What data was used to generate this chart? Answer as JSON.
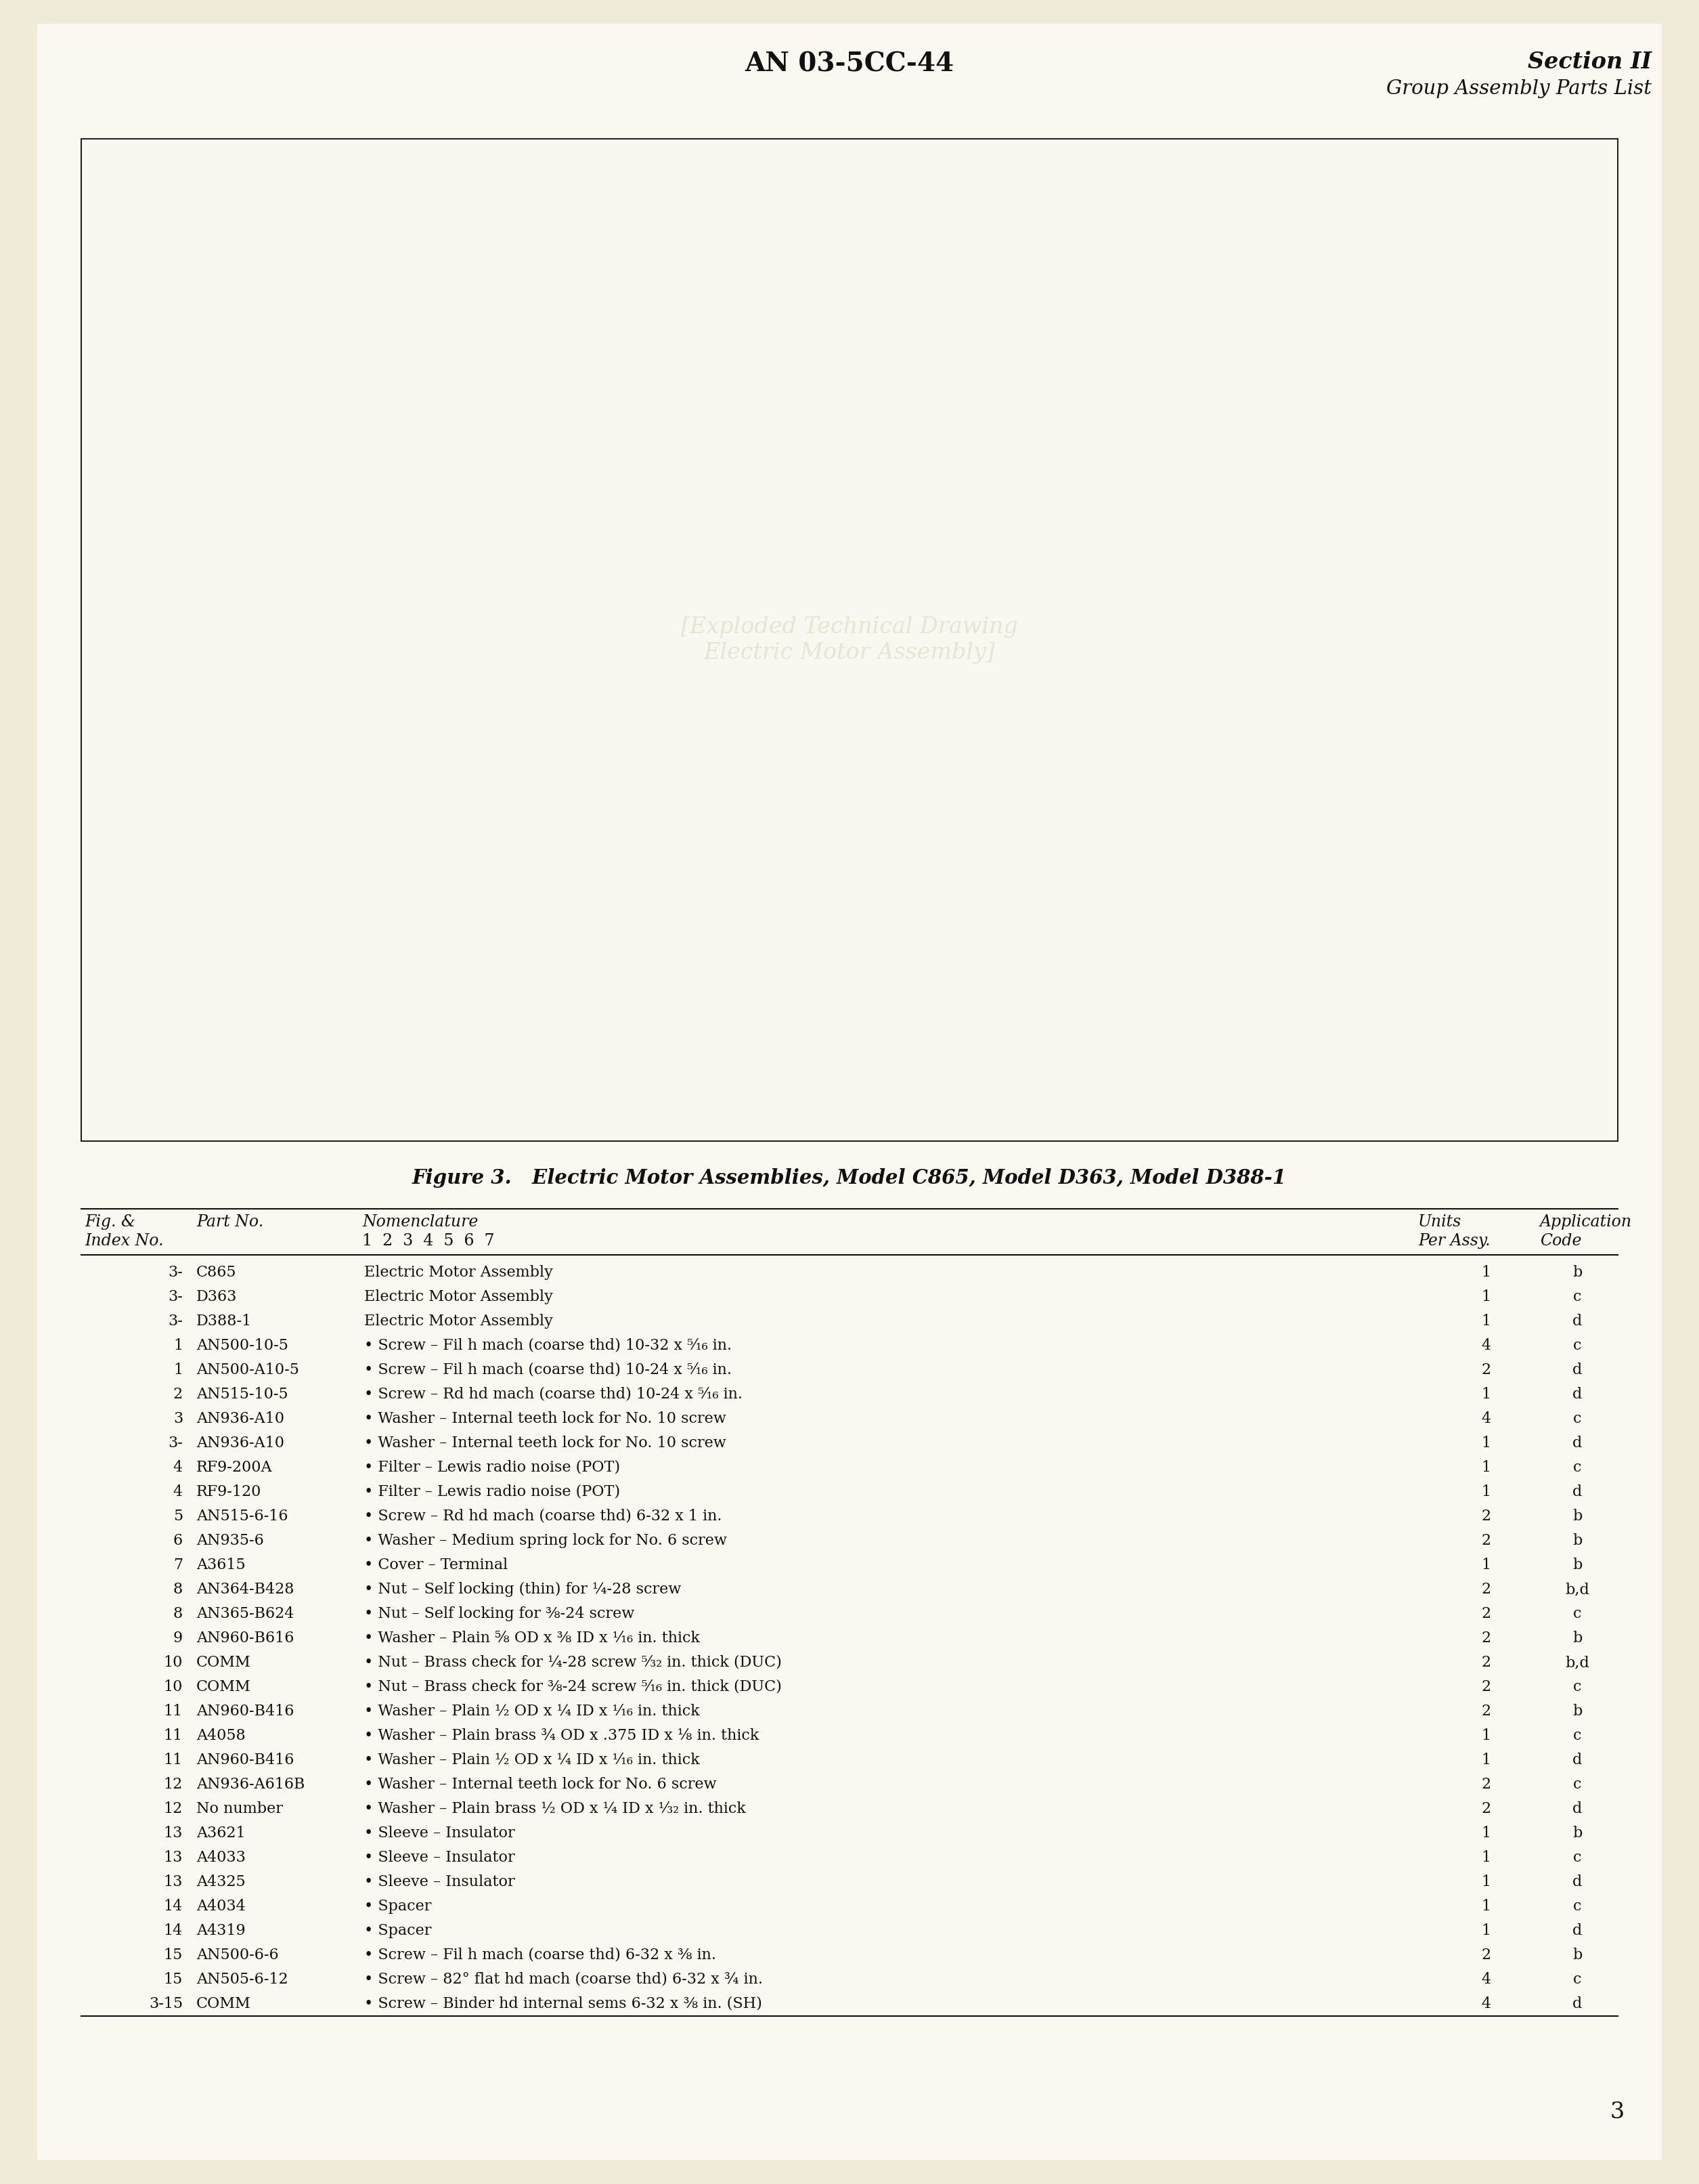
{
  "bg_color": "#f0ead8",
  "page_bg": "#faf8f0",
  "header_center": "AN 03-5CC-44",
  "header_right_line1": "Section II",
  "header_right_line2": "Group Assembly Parts List",
  "figure_caption": "Figure 3.   Electric Motor Assemblies, Model C865, Model D363, Model D388-1",
  "page_number": "3",
  "table_rows": [
    [
      "3-",
      "C865",
      "Electric Motor Assembly",
      "1",
      "b"
    ],
    [
      "3-",
      "D363",
      "Electric Motor Assembly",
      "1",
      "c"
    ],
    [
      "3-",
      "D388-1",
      "Electric Motor Assembly",
      "1",
      "d"
    ],
    [
      "1",
      "AN500-10-5",
      "• Screw – Fil h mach (coarse thd) 10-32 x ⁵⁄₁₆ in.",
      "4",
      "c"
    ],
    [
      "1",
      "AN500-A10-5",
      "• Screw – Fil h mach (coarse thd) 10-24 x ⁵⁄₁₆ in.",
      "2",
      "d"
    ],
    [
      "2",
      "AN515-10-5",
      "• Screw – Rd hd mach (coarse thd) 10-24 x ⁵⁄₁₆ in.",
      "1",
      "d"
    ],
    [
      "3",
      "AN936-A10",
      "• Washer – Internal teeth lock for No. 10 screw",
      "4",
      "c"
    ],
    [
      "3-",
      "AN936-A10",
      "• Washer – Internal teeth lock for No. 10 screw",
      "1",
      "d"
    ],
    [
      "4",
      "RF9-200A",
      "• Filter – Lewis radio noise (POT)",
      "1",
      "c"
    ],
    [
      "4",
      "RF9-120",
      "• Filter – Lewis radio noise (POT)",
      "1",
      "d"
    ],
    [
      "5",
      "AN515-6-16",
      "• Screw – Rd hd mach (coarse thd) 6-32 x 1 in.",
      "2",
      "b"
    ],
    [
      "6",
      "AN935-6",
      "• Washer – Medium spring lock for No. 6 screw",
      "2",
      "b"
    ],
    [
      "7",
      "A3615",
      "• Cover – Terminal",
      "1",
      "b"
    ],
    [
      "8",
      "AN364-B428",
      "• Nut – Self locking (thin) for ¼-28 screw",
      "2",
      "b,d"
    ],
    [
      "8",
      "AN365-B624",
      "• Nut – Self locking for ⅜-24 screw",
      "2",
      "c"
    ],
    [
      "9",
      "AN960-B616",
      "• Washer – Plain ⅝ OD x ⅜ ID x ¹⁄₁₆ in. thick",
      "2",
      "b"
    ],
    [
      "10",
      "COMM",
      "• Nut – Brass check for ¼-28 screw ⁵⁄₃₂ in. thick (DUC)",
      "2",
      "b,d"
    ],
    [
      "10",
      "COMM",
      "• Nut – Brass check for ⅜-24 screw ⁵⁄₁₆ in. thick (DUC)",
      "2",
      "c"
    ],
    [
      "11",
      "AN960-B416",
      "• Washer – Plain ½ OD x ¼ ID x ¹⁄₁₆ in. thick",
      "2",
      "b"
    ],
    [
      "11",
      "A4058",
      "• Washer – Plain brass ¾ OD x .375 ID x ⅛ in. thick",
      "1",
      "c"
    ],
    [
      "11",
      "AN960-B416",
      "• Washer – Plain ½ OD x ¼ ID x ¹⁄₁₆ in. thick",
      "1",
      "d"
    ],
    [
      "12",
      "AN936-A616B",
      "• Washer – Internal teeth lock for No. 6 screw",
      "2",
      "c"
    ],
    [
      "12",
      "No number",
      "• Washer – Plain brass ½ OD x ¼ ID x ¹⁄₃₂ in. thick",
      "2",
      "d"
    ],
    [
      "13",
      "A3621",
      "• Sleeve – Insulator",
      "1",
      "b"
    ],
    [
      "13",
      "A4033",
      "• Sleeve – Insulator",
      "1",
      "c"
    ],
    [
      "13",
      "A4325",
      "• Sleeve – Insulator",
      "1",
      "d"
    ],
    [
      "14",
      "A4034",
      "• Spacer",
      "1",
      "c"
    ],
    [
      "14",
      "A4319",
      "• Spacer",
      "1",
      "d"
    ],
    [
      "15",
      "AN500-6-6",
      "• Screw – Fil h mach (coarse thd) 6-32 x ⅜ in.",
      "2",
      "b"
    ],
    [
      "15",
      "AN505-6-12",
      "• Screw – 82° flat hd mach (coarse thd) 6-32 x ¾ in.",
      "4",
      "c"
    ],
    [
      "3-15",
      "COMM",
      "• Screw – Binder hd internal sems 6-32 x ⅜ in. (SH)",
      "4",
      "d"
    ]
  ]
}
